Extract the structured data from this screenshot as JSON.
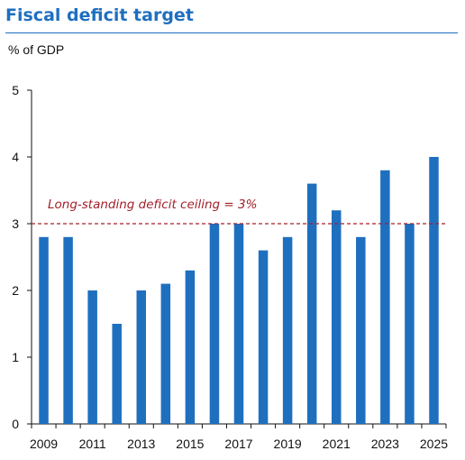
{
  "title": "Fiscal deficit target",
  "unit_label": "% of GDP",
  "colors": {
    "title": "#1f6fbf",
    "bar": "#1f6fbf",
    "ceiling": "#a3202a"
  },
  "chart_data": {
    "type": "bar",
    "title": "Fiscal deficit target",
    "ylabel": "% of GDP",
    "xlabel": "",
    "categories": [
      "2009",
      "2010",
      "2011",
      "2012",
      "2013",
      "2014",
      "2015",
      "2016",
      "2017",
      "2018",
      "2019",
      "2020",
      "2021",
      "2022",
      "2023",
      "2024",
      "2025"
    ],
    "values": [
      2.8,
      2.8,
      2.0,
      1.5,
      2.0,
      2.1,
      2.3,
      3.0,
      3.0,
      2.6,
      2.8,
      3.6,
      3.2,
      2.8,
      3.8,
      3.0,
      4.0
    ],
    "x_tick_labels": [
      "2009",
      "2011",
      "2013",
      "2015",
      "2017",
      "2019",
      "2021",
      "2023",
      "2025"
    ],
    "y_ticks": [
      0,
      1,
      2,
      3,
      4,
      5
    ],
    "ylim": [
      0,
      5
    ],
    "grid": false,
    "legend": "none",
    "reference_line": {
      "value": 3,
      "label": "Long-standing deficit ceiling = 3%",
      "style": "dashed"
    }
  }
}
